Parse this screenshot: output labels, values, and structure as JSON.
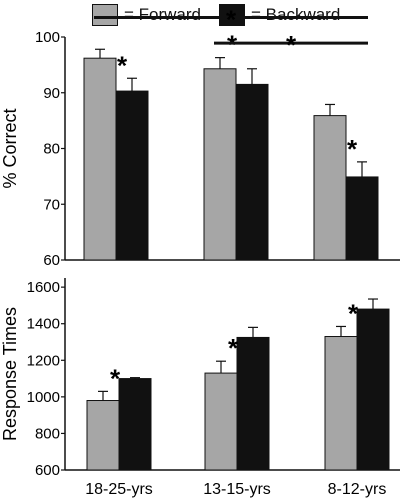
{
  "legend": {
    "forward_label": "= Forward",
    "backward_label": "= Backward"
  },
  "colors": {
    "forward": "#a6a6a6",
    "backward": "#111111",
    "axis": "#111111"
  },
  "chart_data": [
    {
      "type": "bar",
      "ylabel": "% Correct",
      "ylim": [
        60,
        100
      ],
      "yticks": [
        60,
        70,
        80,
        90,
        100
      ],
      "categories": [
        "18-25-yrs",
        "13-15-yrs",
        "8-12-yrs"
      ],
      "series": [
        {
          "name": "Forward",
          "values": [
            96.2,
            94.3,
            85.9
          ],
          "errors": [
            1.6,
            2.0,
            2.0
          ]
        },
        {
          "name": "Backward",
          "values": [
            90.3,
            91.5,
            74.9
          ],
          "errors": [
            2.3,
            2.8,
            2.7
          ]
        }
      ],
      "annotations": [
        {
          "type": "star-above",
          "category": 0,
          "series": "Backward",
          "text": "*"
        },
        {
          "type": "star-above",
          "category": 1,
          "series": "Forward",
          "text": "*"
        },
        {
          "type": "star-above",
          "category": 2,
          "series": "Backward",
          "text": "*"
        },
        {
          "type": "bracket",
          "from_category": 0,
          "to_category": 2,
          "at": 103.5,
          "text": "*"
        },
        {
          "type": "bracket",
          "from_category": 1,
          "to_category": 2,
          "at": 98.9,
          "text": "*"
        }
      ]
    },
    {
      "type": "bar",
      "ylabel": "Response Times",
      "ylim": [
        600,
        1650
      ],
      "yticks": [
        600,
        800,
        1000,
        1200,
        1400,
        1600
      ],
      "categories": [
        "18-25-yrs",
        "13-15-yrs",
        "8-12-yrs"
      ],
      "series": [
        {
          "name": "Forward",
          "values": [
            980,
            1130,
            1330
          ],
          "errors": [
            50,
            65,
            55
          ]
        },
        {
          "name": "Backward",
          "values": [
            1100,
            1325,
            1480
          ],
          "errors": [
            5,
            55,
            55
          ]
        }
      ],
      "annotations": [
        {
          "type": "star-above",
          "category": 0,
          "series": "Forward",
          "text": "*"
        },
        {
          "type": "star-above",
          "category": 1,
          "series": "Forward",
          "text": "*"
        },
        {
          "type": "star-above",
          "category": 2,
          "series": "Forward",
          "text": "*"
        }
      ]
    }
  ]
}
